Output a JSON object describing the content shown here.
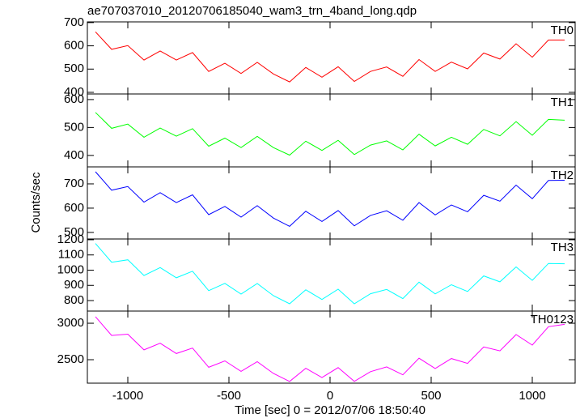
{
  "chart_data": [
    {
      "type": "line",
      "title": "ae707037010_20120706185040_wam3_trn_4band_long.qdp",
      "x": [
        -1160,
        -1080,
        -1000,
        -920,
        -840,
        -760,
        -680,
        -600,
        -520,
        -440,
        -360,
        -280,
        -200,
        -120,
        -40,
        40,
        120,
        200,
        280,
        360,
        440,
        520,
        600,
        680,
        760,
        840,
        920,
        1000,
        1080,
        1160
      ],
      "xlim": [
        -1200,
        1212
      ],
      "ylim": [
        393,
        703
      ],
      "yticks": [
        700,
        600,
        500,
        400
      ],
      "series": [
        {
          "name": "TH0",
          "color": "#ff0000",
          "values": [
            660,
            585,
            601,
            539,
            578,
            539,
            571,
            490,
            525,
            481,
            529,
            479,
            445,
            507,
            465,
            510,
            447,
            490,
            509,
            469,
            541,
            490,
            530,
            501,
            569,
            543,
            609,
            551,
            625,
            625
          ]
        }
      ]
    },
    {
      "type": "line",
      "x": [
        -1160,
        -1080,
        -1000,
        -920,
        -840,
        -760,
        -680,
        -600,
        -520,
        -440,
        -360,
        -280,
        -200,
        -120,
        -40,
        40,
        120,
        200,
        280,
        360,
        440,
        520,
        600,
        680,
        760,
        840,
        920,
        1000,
        1080,
        1160
      ],
      "xlim": [
        -1200,
        1212
      ],
      "ylim": [
        359,
        620
      ],
      "yticks": [
        600,
        500,
        400
      ],
      "series": [
        {
          "name": "TH1",
          "color": "#00ff00",
          "values": [
            554,
            497,
            512,
            465,
            498,
            469,
            496,
            433,
            462,
            428,
            468,
            428,
            401,
            451,
            418,
            454,
            403,
            437,
            452,
            420,
            476,
            434,
            465,
            440,
            493,
            470,
            521,
            472,
            529,
            526
          ]
        }
      ]
    },
    {
      "type": "line",
      "ylabel": "Counts/sec",
      "x": [
        -1160,
        -1080,
        -1000,
        -920,
        -840,
        -760,
        -680,
        -600,
        -520,
        -440,
        -360,
        -280,
        -200,
        -120,
        -40,
        40,
        120,
        200,
        280,
        360,
        440,
        520,
        600,
        680,
        760,
        840,
        920,
        1000,
        1080,
        1160
      ],
      "xlim": [
        -1200,
        1212
      ],
      "ylim": [
        473,
        770
      ],
      "yticks": [
        700,
        600,
        500
      ],
      "series": [
        {
          "name": "TH2",
          "color": "#0000ff",
          "values": [
            750,
            674,
            689,
            625,
            664,
            623,
            655,
            573,
            607,
            563,
            610,
            559,
            525,
            587,
            545,
            590,
            527,
            570,
            589,
            550,
            623,
            572,
            613,
            585,
            653,
            629,
            695,
            639,
            714,
            715
          ]
        }
      ]
    },
    {
      "type": "line",
      "x": [
        -1160,
        -1080,
        -1000,
        -920,
        -840,
        -760,
        -680,
        -600,
        -520,
        -440,
        -360,
        -280,
        -200,
        -120,
        -40,
        40,
        120,
        200,
        280,
        360,
        440,
        520,
        600,
        680,
        760,
        840,
        920,
        1000,
        1080,
        1160
      ],
      "xlim": [
        -1200,
        1212
      ],
      "ylim": [
        731,
        1205
      ],
      "yticks": [
        1200,
        1100,
        1000,
        900,
        800
      ],
      "series": [
        {
          "name": "TH3",
          "color": "#00ffff",
          "values": [
            1175,
            1052,
            1068,
            965,
            1017,
            950,
            993,
            865,
            913,
            843,
            912,
            832,
            779,
            871,
            807,
            875,
            779,
            845,
            873,
            813,
            921,
            844,
            904,
            860,
            962,
            923,
            1021,
            933,
            1044,
            1042
          ]
        }
      ]
    },
    {
      "type": "line",
      "xlabel": "Time [sec] 0 = 2012/07/06 18:50:40",
      "x": [
        -1160,
        -1080,
        -1000,
        -920,
        -840,
        -760,
        -680,
        -600,
        -520,
        -440,
        -360,
        -280,
        -200,
        -120,
        -40,
        40,
        120,
        200,
        280,
        360,
        440,
        520,
        600,
        680,
        760,
        840,
        920,
        1000,
        1080,
        1160
      ],
      "xlim": [
        -1200,
        1212
      ],
      "xticks": [
        -1000,
        -500,
        0,
        500,
        1000
      ],
      "ylim": [
        2178,
        3167
      ],
      "yticks": [
        3000,
        2500
      ],
      "series": [
        {
          "name": "TH0123",
          "color": "#ff00ff",
          "values": [
            3090,
            2832,
            2850,
            2635,
            2726,
            2585,
            2659,
            2396,
            2484,
            2340,
            2472,
            2311,
            2201,
            2383,
            2256,
            2391,
            2203,
            2336,
            2401,
            2292,
            2520,
            2379,
            2516,
            2449,
            2675,
            2621,
            2845,
            2700,
            2952,
            2985
          ]
        }
      ]
    }
  ]
}
